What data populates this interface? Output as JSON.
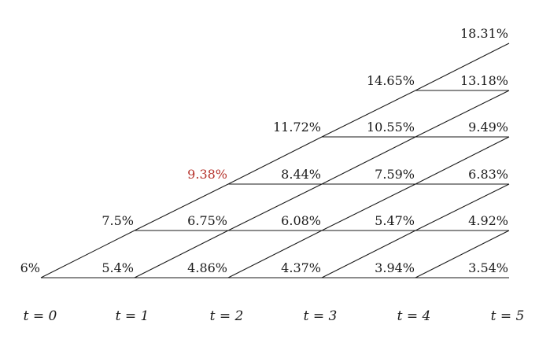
{
  "tree": {
    "steps": [
      "t = 0",
      "t = 1",
      "t = 2",
      "t = 3",
      "t = 4",
      "t = 5"
    ],
    "nodes": [
      [
        "6%"
      ],
      [
        "5.4%",
        "7.5%"
      ],
      [
        "4.86%",
        "6.75%",
        "9.38%"
      ],
      [
        "4.37%",
        "6.08%",
        "8.44%",
        "11.72%"
      ],
      [
        "3.94%",
        "5.47%",
        "7.59%",
        "10.55%",
        "14.65%"
      ],
      [
        "3.54%",
        "4.92%",
        "6.83%",
        "9.49%",
        "13.18%",
        "18.31%"
      ]
    ],
    "highlight": {
      "step": 2,
      "level": 2,
      "color": "#b5322b"
    },
    "line_color": "#1a1a1a"
  }
}
